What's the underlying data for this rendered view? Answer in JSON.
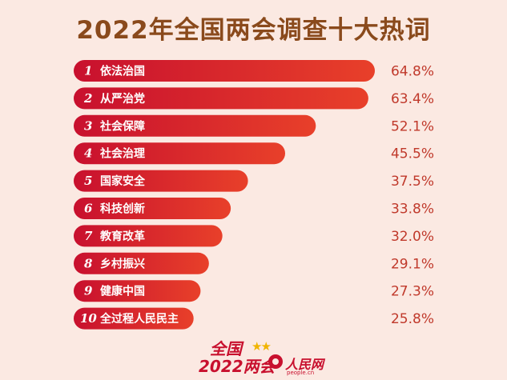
{
  "header": {
    "title": "2022年全国两会调查十大热词"
  },
  "chart_data": {
    "type": "bar",
    "orientation": "horizontal",
    "title": "2022年全国两会调查十大热词",
    "categories": [
      "依法治国",
      "从严治党",
      "社会保障",
      "社会治理",
      "国家安全",
      "科技创新",
      "教育改革",
      "乡村振兴",
      "健康中国",
      "全过程人民民主"
    ],
    "ranks": [
      "1",
      "2",
      "3",
      "4",
      "5",
      "6",
      "7",
      "8",
      "9",
      "10"
    ],
    "values": [
      64.8,
      63.4,
      52.1,
      45.5,
      37.5,
      33.8,
      32.0,
      29.1,
      27.3,
      25.8
    ],
    "value_labels": [
      "64.8%",
      "63.4%",
      "52.1%",
      "45.5%",
      "37.5%",
      "33.8%",
      "32.0%",
      "29.1%",
      "27.3%",
      "25.8%"
    ],
    "xlim": [
      0,
      64.8
    ],
    "colors": {
      "bar_start": "#c8102e",
      "bar_end": "#e8402a",
      "value_text": "#c0392b"
    }
  },
  "footer": {
    "event": "全国",
    "year": "2022两会",
    "stars": "★★",
    "brand": "人民网",
    "domain": "people.cn"
  },
  "colors": {
    "background": "#fbe9e2",
    "title": "#8a4a1c",
    "brand_red": "#c8102e"
  }
}
